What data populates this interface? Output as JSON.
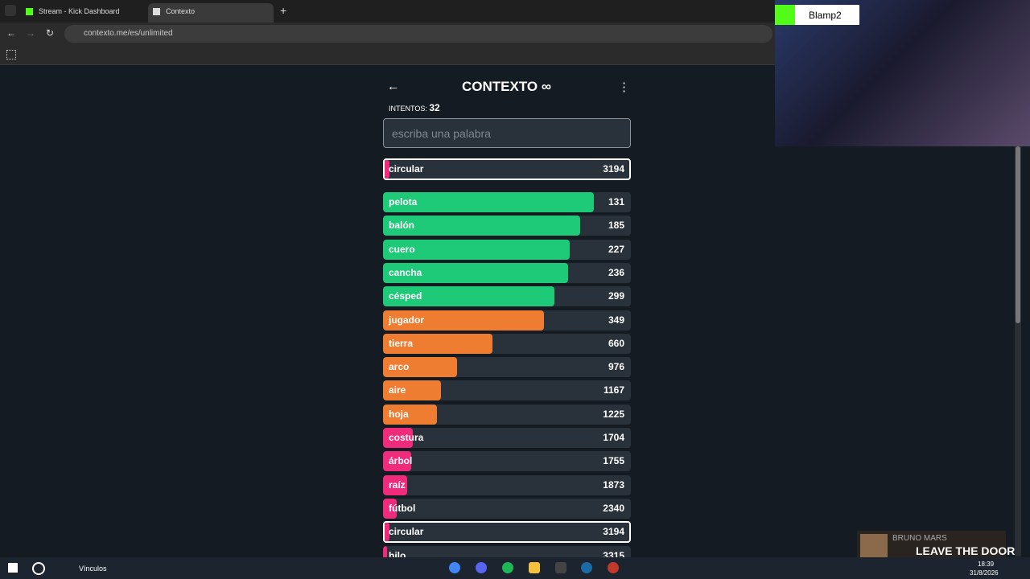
{
  "browser": {
    "tabs": [
      {
        "title": "Stream - Kick Dashboard"
      },
      {
        "title": "Contexto"
      }
    ],
    "url": "contexto.me/es/unlimited"
  },
  "game": {
    "title": "CONTEXTO",
    "attempts_label": "INTENTOS:",
    "attempts": 32,
    "input_placeholder": "escriba una palabra",
    "last_guess": {
      "word": "circular",
      "rank": 3194,
      "color": "#f02b7b"
    },
    "guesses": [
      {
        "word": "pelota",
        "rank": 131,
        "color": "#1ec977"
      },
      {
        "word": "balón",
        "rank": 185,
        "color": "#1ec977"
      },
      {
        "word": "cuero",
        "rank": 227,
        "color": "#1ec977"
      },
      {
        "word": "cancha",
        "rank": 236,
        "color": "#1ec977"
      },
      {
        "word": "césped",
        "rank": 299,
        "color": "#1ec977"
      },
      {
        "word": "jugador",
        "rank": 349,
        "color": "#ef7d31"
      },
      {
        "word": "tierra",
        "rank": 660,
        "color": "#ef7d31"
      },
      {
        "word": "arco",
        "rank": 976,
        "color": "#ef7d31"
      },
      {
        "word": "aire",
        "rank": 1167,
        "color": "#ef7d31"
      },
      {
        "word": "hoja",
        "rank": 1225,
        "color": "#ef7d31"
      },
      {
        "word": "costura",
        "rank": 1704,
        "color": "#f02b7b"
      },
      {
        "word": "árbol",
        "rank": 1755,
        "color": "#f02b7b"
      },
      {
        "word": "raíz",
        "rank": 1873,
        "color": "#f02b7b"
      },
      {
        "word": "fútbol",
        "rank": 2340,
        "color": "#f02b7b"
      },
      {
        "word": "circular",
        "rank": 3194,
        "color": "#f02b7b",
        "current": true
      },
      {
        "word": "hilo",
        "rank": 3315,
        "color": "#f02b7b"
      }
    ]
  },
  "stream": {
    "channel": "Blamp2"
  },
  "music": {
    "artist": "BRUNO MARS",
    "song": "LEAVE THE DOOR"
  },
  "taskbar": {
    "toolbar": "Vínculos",
    "time": "18:39",
    "date": "31/8/2026"
  }
}
